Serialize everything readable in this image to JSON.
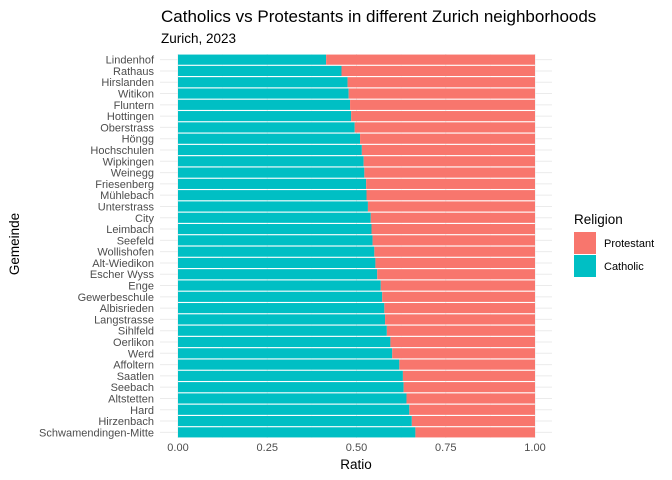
{
  "chart_data": {
    "type": "bar",
    "orientation": "horizontal",
    "stacked": true,
    "title": "Catholics vs Protestants in different Zurich neighborhoods",
    "subtitle": "Zurich, 2023",
    "xlabel": "Ratio",
    "ylabel": "Gemeinde",
    "xlim": [
      0,
      1
    ],
    "x_ticks": [
      "0.00",
      "0.25",
      "0.50",
      "0.75",
      "1.00"
    ],
    "grid": true,
    "legend": {
      "title": "Religion",
      "position": "right",
      "entries": [
        "Protestant",
        "Catholic"
      ]
    },
    "categories": [
      "Lindenhof",
      "Rathaus",
      "Hirslanden",
      "Witikon",
      "Fluntern",
      "Hottingen",
      "Oberstrass",
      "Höngg",
      "Hochschulen",
      "Wipkingen",
      "Weinegg",
      "Friesenberg",
      "Mühlebach",
      "Unterstrass",
      "City",
      "Leimbach",
      "Seefeld",
      "Wollishofen",
      "Alt-Wiedikon",
      "Escher Wyss",
      "Enge",
      "Gewerbeschule",
      "Albisrieden",
      "Langstrasse",
      "Sihlfeld",
      "Oerlikon",
      "Werd",
      "Affoltern",
      "Saatlen",
      "Seebach",
      "Altstetten",
      "Hard",
      "Hirzenbach",
      "Schwamendingen-Mitte"
    ],
    "series": [
      {
        "name": "Catholic",
        "color": "#00BFC4",
        "values": [
          0.415,
          0.458,
          0.475,
          0.478,
          0.482,
          0.485,
          0.495,
          0.51,
          0.515,
          0.52,
          0.522,
          0.527,
          0.528,
          0.532,
          0.54,
          0.542,
          0.545,
          0.55,
          0.553,
          0.558,
          0.568,
          0.572,
          0.578,
          0.58,
          0.585,
          0.595,
          0.6,
          0.62,
          0.63,
          0.632,
          0.64,
          0.648,
          0.655,
          0.665
        ]
      },
      {
        "name": "Protestant",
        "color": "#F8766D",
        "values": [
          0.585,
          0.542,
          0.525,
          0.522,
          0.518,
          0.515,
          0.505,
          0.49,
          0.485,
          0.48,
          0.478,
          0.473,
          0.472,
          0.468,
          0.46,
          0.458,
          0.455,
          0.45,
          0.447,
          0.442,
          0.432,
          0.428,
          0.422,
          0.42,
          0.415,
          0.405,
          0.4,
          0.38,
          0.37,
          0.368,
          0.36,
          0.352,
          0.345,
          0.335
        ]
      }
    ]
  }
}
